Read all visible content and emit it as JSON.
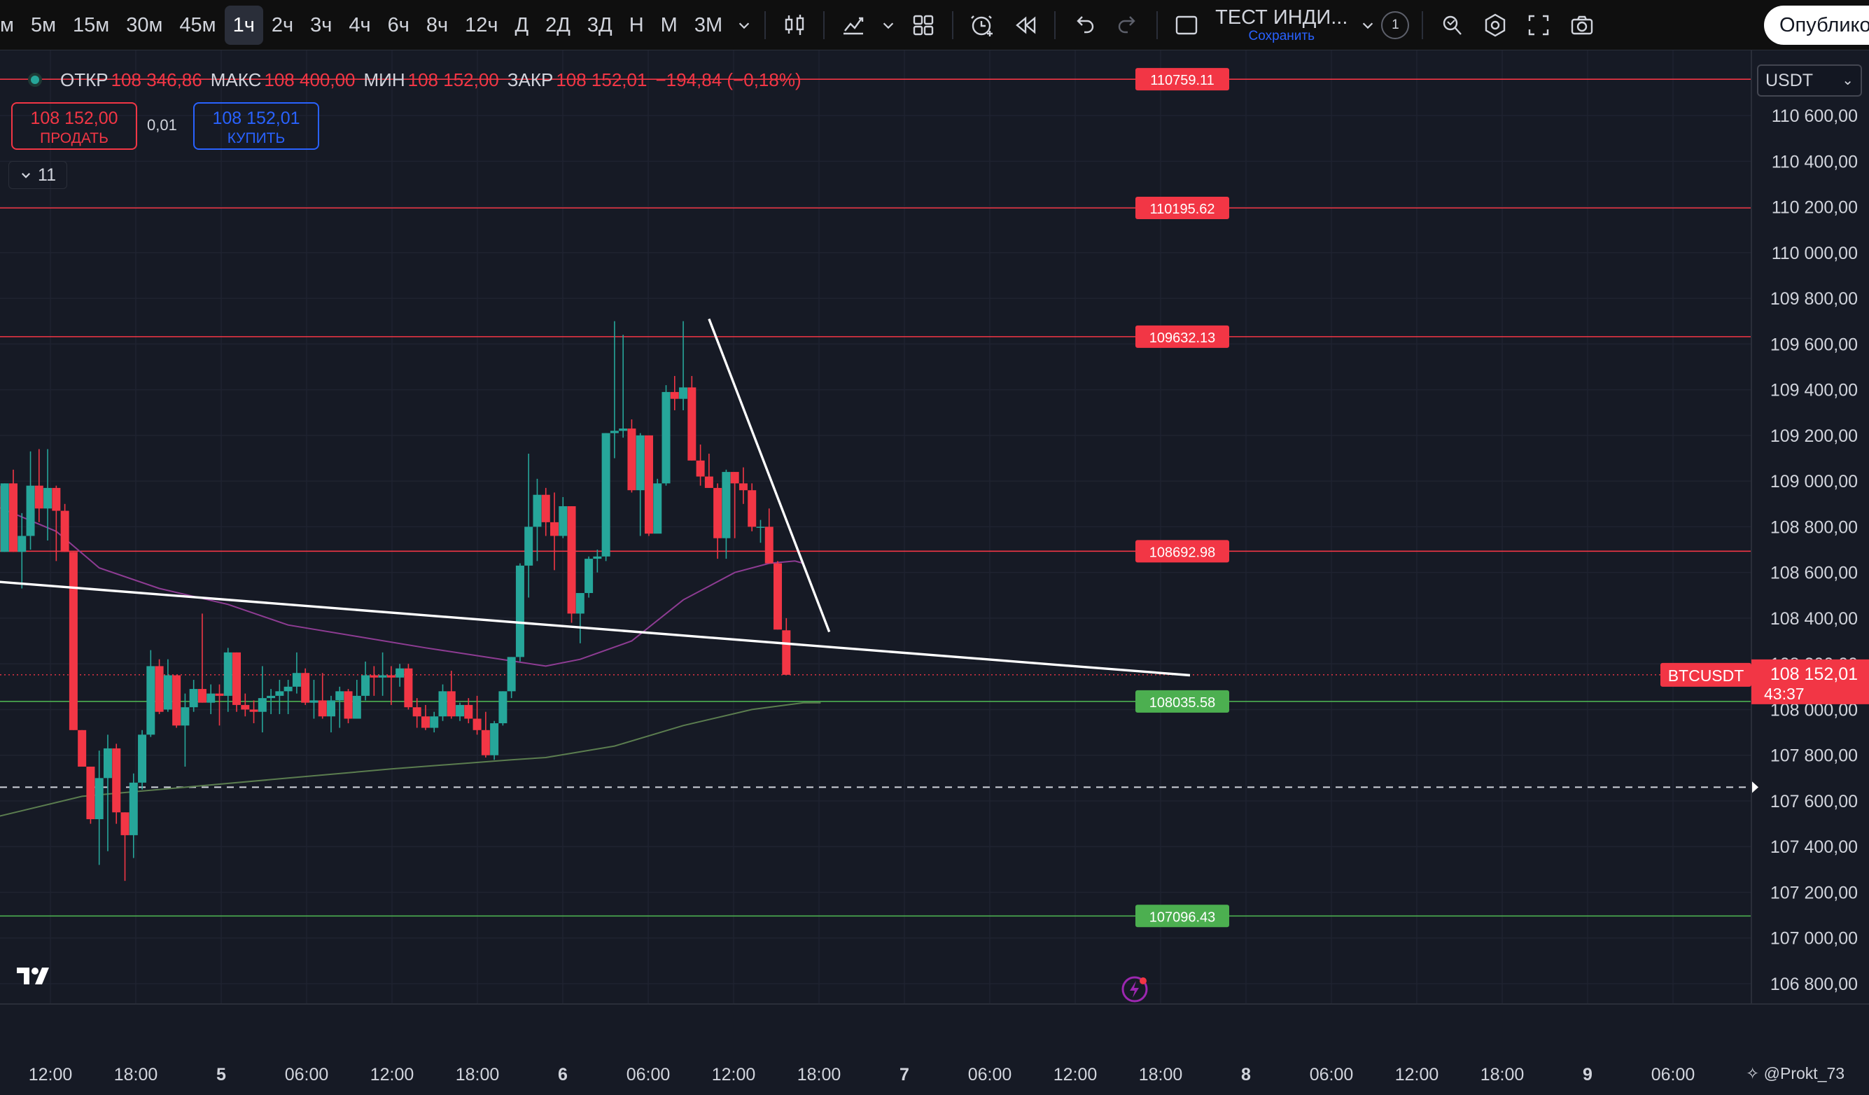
{
  "toolbar": {
    "timeframes": [
      "м",
      "5м",
      "15м",
      "30м",
      "45м",
      "1ч",
      "2ч",
      "3ч",
      "4ч",
      "6ч",
      "8ч",
      "12ч",
      "Д",
      "2Д",
      "3Д",
      "Н",
      "М",
      "3М"
    ],
    "active_timeframe": "1ч",
    "indicator_name": "ТЕСТ ИНДИ...",
    "indicator_save": "Сохранить",
    "counter": "1",
    "publish_label": "Опубликовать",
    "icons": [
      "chevron-down-icon",
      "candles-icon",
      "indicators-icon",
      "templates-icon",
      "alert-icon",
      "replay-icon",
      "undo-icon",
      "redo-icon",
      "layout-icon",
      "search-icon",
      "settings-icon",
      "fullscreen-icon",
      "camera-icon"
    ]
  },
  "legend": {
    "open_label": "ОТКР",
    "open": "108 346,86",
    "high_label": "МАКС",
    "high": "108 400,00",
    "low_label": "МИН",
    "low": "108 152,00",
    "close_label": "ЗАКР",
    "close": "108 152,01",
    "change": "−194,84 (−0,18%)"
  },
  "trading": {
    "sell_price": "108 152,00",
    "sell_label": "ПРОДАТЬ",
    "spread": "0,01",
    "buy_price": "108 152,01",
    "buy_label": "КУПИТЬ",
    "collapse_count": "11"
  },
  "currency": "USDT",
  "watermark": "@Prokt_73",
  "colors": {
    "up": "#26a69a",
    "down": "#f23645",
    "background": "#161a25",
    "ma_short": "#9c27b0",
    "ma_long": "#4caf50"
  },
  "chart_data": {
    "type": "candlestick",
    "symbol": "BTCUSDT",
    "last_price": "108 152,01",
    "countdown": "43:37",
    "y_axis_ticks": [
      "110 600,00",
      "110 400,00",
      "110 200,00",
      "110 000,00",
      "109 800,00",
      "109 600,00",
      "109 400,00",
      "109 200,00",
      "109 000,00",
      "108 800,00",
      "108 600,00",
      "108 400,00",
      "108 200,00",
      "108 000,00",
      "107 800,00",
      "107 600,00",
      "107 400,00",
      "107 200,00",
      "107 000,00",
      "106 800,00"
    ],
    "x_axis_ticks": [
      "12:00",
      "18:00",
      "5",
      "06:00",
      "12:00",
      "18:00",
      "6",
      "06:00",
      "12:00",
      "18:00",
      "7",
      "06:00",
      "12:00",
      "18:00",
      "8",
      "06:00",
      "12:00",
      "18:00",
      "9",
      "06:00"
    ],
    "ylim": [
      106700,
      110850
    ],
    "level_lines": [
      {
        "value": 110759.11,
        "label": "110759.11",
        "color": "red"
      },
      {
        "value": 110195.62,
        "label": "110195.62",
        "color": "red"
      },
      {
        "value": 109632.13,
        "label": "109632.13",
        "color": "red"
      },
      {
        "value": 108692.98,
        "label": "108692.98",
        "color": "red"
      },
      {
        "value": 108035.58,
        "label": "108035.58",
        "color": "green"
      },
      {
        "value": 107096.43,
        "label": "107096.43",
        "color": "green"
      }
    ],
    "dashed_level": 107660,
    "trendlines": [
      {
        "from": [
          -2,
          108560
        ],
        "to": [
          137,
          108150
        ]
      },
      {
        "from": [
          81,
          109710
        ],
        "to": [
          95,
          108340
        ]
      }
    ],
    "ma_short": [
      [
        -2,
        108890
      ],
      [
        5,
        108780
      ],
      [
        10,
        108620
      ],
      [
        17,
        108530
      ],
      [
        25,
        108460
      ],
      [
        32,
        108370
      ],
      [
        40,
        108320
      ],
      [
        48,
        108270
      ],
      [
        55,
        108230
      ],
      [
        62,
        108190
      ],
      [
        66,
        108220
      ],
      [
        72,
        108300
      ],
      [
        78,
        108480
      ],
      [
        84,
        108600
      ],
      [
        88,
        108640
      ],
      [
        91,
        108650
      ],
      [
        92,
        108640
      ]
    ],
    "ma_long": [
      [
        -2,
        107530
      ],
      [
        8,
        107620
      ],
      [
        20,
        107660
      ],
      [
        32,
        107700
      ],
      [
        44,
        107740
      ],
      [
        58,
        107780
      ],
      [
        62,
        107790
      ],
      [
        70,
        107840
      ],
      [
        78,
        107930
      ],
      [
        86,
        108000
      ],
      [
        92,
        108030
      ],
      [
        94,
        108030
      ]
    ],
    "candles": [
      [
        -2,
        108980,
        108980,
        108690,
        108690
      ],
      [
        -1,
        108690,
        108990,
        108690,
        108990
      ],
      [
        0,
        108990,
        109050,
        108690,
        108690
      ],
      [
        1,
        108690,
        108860,
        108530,
        108760
      ],
      [
        2,
        108760,
        109130,
        108700,
        108980
      ],
      [
        3,
        108980,
        109140,
        108820,
        108880
      ],
      [
        4,
        108880,
        109140,
        108740,
        108970
      ],
      [
        5,
        108970,
        108980,
        108650,
        108870
      ],
      [
        6,
        108870,
        108900,
        108690,
        108690
      ],
      [
        7,
        108690,
        108690,
        107910,
        107910
      ],
      [
        8,
        107910,
        107910,
        107750,
        107750
      ],
      [
        9,
        107750,
        107750,
        107500,
        107520
      ],
      [
        10,
        107520,
        107820,
        107320,
        107700
      ],
      [
        11,
        107700,
        107890,
        107380,
        107830
      ],
      [
        12,
        107830,
        107850,
        107500,
        107550
      ],
      [
        13,
        107550,
        107550,
        107250,
        107450
      ],
      [
        14,
        107450,
        107720,
        107350,
        107680
      ],
      [
        15,
        107680,
        107910,
        107650,
        107890
      ],
      [
        16,
        107890,
        108260,
        107880,
        108190
      ],
      [
        17,
        108190,
        108220,
        107980,
        107990
      ],
      [
        18,
        108000,
        108220,
        107990,
        108150
      ],
      [
        19,
        108150,
        108150,
        107920,
        107930
      ],
      [
        20,
        107930,
        108070,
        107750,
        108010
      ],
      [
        21,
        108010,
        108130,
        107990,
        108090
      ],
      [
        22,
        108090,
        108420,
        108030,
        108030
      ],
      [
        23,
        108030,
        108110,
        107980,
        108070
      ],
      [
        24,
        108070,
        108110,
        107930,
        108060
      ],
      [
        25,
        108060,
        108270,
        107990,
        108250
      ],
      [
        26,
        108250,
        108250,
        107990,
        108020
      ],
      [
        27,
        108020,
        108070,
        107970,
        108000
      ],
      [
        28,
        108000,
        108040,
        107940,
        107990
      ],
      [
        29,
        107990,
        108190,
        107900,
        108050
      ],
      [
        30,
        108050,
        108090,
        107980,
        108060
      ],
      [
        31,
        108060,
        108130,
        107980,
        108080
      ],
      [
        32,
        108080,
        108130,
        107980,
        108100
      ],
      [
        33,
        108100,
        108250,
        108070,
        108160
      ],
      [
        34,
        108160,
        108180,
        108020,
        108030
      ],
      [
        35,
        108030,
        108130,
        107960,
        108040
      ],
      [
        36,
        108040,
        108160,
        107960,
        107970
      ],
      [
        37,
        107970,
        108060,
        107900,
        108040
      ],
      [
        38,
        108040,
        108100,
        107920,
        108080
      ],
      [
        39,
        108080,
        108090,
        107940,
        107960
      ],
      [
        40,
        107960,
        108130,
        107960,
        108060
      ],
      [
        41,
        108060,
        108210,
        108040,
        108150
      ],
      [
        42,
        108150,
        108190,
        108060,
        108140
      ],
      [
        43,
        108140,
        108250,
        108060,
        108150
      ],
      [
        44,
        108150,
        108190,
        108020,
        108140
      ],
      [
        45,
        108140,
        108200,
        108100,
        108180
      ],
      [
        46,
        108180,
        108200,
        108000,
        108010
      ],
      [
        47,
        108010,
        108050,
        107920,
        107970
      ],
      [
        48,
        107970,
        108020,
        107910,
        107920
      ],
      [
        49,
        107920,
        107990,
        107900,
        107970
      ],
      [
        50,
        107970,
        108110,
        107950,
        108080
      ],
      [
        51,
        108080,
        108170,
        107960,
        107970
      ],
      [
        52,
        107970,
        108030,
        107950,
        108020
      ],
      [
        53,
        108020,
        108050,
        107940,
        107960
      ],
      [
        54,
        107960,
        108060,
        107890,
        107910
      ],
      [
        55,
        107910,
        107990,
        107790,
        107800
      ],
      [
        56,
        107800,
        107950,
        107780,
        107940
      ],
      [
        57,
        107940,
        108080,
        107930,
        108080
      ],
      [
        58,
        108080,
        108230,
        108050,
        108230
      ],
      [
        59,
        108230,
        108640,
        108210,
        108630
      ],
      [
        60,
        108630,
        109120,
        108490,
        108800
      ],
      [
        61,
        108800,
        109010,
        108650,
        108940
      ],
      [
        62,
        108940,
        108970,
        108760,
        108820
      ],
      [
        63,
        108820,
        108950,
        108610,
        108760
      ],
      [
        64,
        108760,
        108930,
        108750,
        108890
      ],
      [
        65,
        108890,
        108890,
        108380,
        108420
      ],
      [
        66,
        108420,
        108500,
        108290,
        108510
      ],
      [
        67,
        108510,
        108670,
        108490,
        108660
      ],
      [
        68,
        108660,
        108700,
        108600,
        108670
      ],
      [
        69,
        108670,
        109210,
        108650,
        109210
      ],
      [
        70,
        109210,
        109700,
        109100,
        109220
      ],
      [
        71,
        109220,
        109640,
        109190,
        109230
      ],
      [
        72,
        109230,
        109270,
        108950,
        108960
      ],
      [
        73,
        108960,
        109210,
        108760,
        109200
      ],
      [
        74,
        109200,
        109200,
        108760,
        108770
      ],
      [
        75,
        108770,
        109010,
        108780,
        108990
      ],
      [
        76,
        108990,
        109420,
        108980,
        109390
      ],
      [
        77,
        109390,
        109460,
        109310,
        109360
      ],
      [
        78,
        109360,
        109700,
        109310,
        109410
      ],
      [
        79,
        109410,
        109460,
        109090,
        109090
      ],
      [
        80,
        109090,
        109160,
        108980,
        109020
      ],
      [
        81,
        109020,
        109120,
        108970,
        108970
      ],
      [
        82,
        108970,
        108990,
        108660,
        108750
      ],
      [
        83,
        108750,
        109050,
        108660,
        109040
      ],
      [
        84,
        109040,
        109040,
        108750,
        108990
      ],
      [
        85,
        108990,
        109060,
        108900,
        108960
      ],
      [
        86,
        108960,
        108990,
        108780,
        108800
      ],
      [
        87,
        108800,
        108830,
        108730,
        108800
      ],
      [
        88,
        108800,
        108880,
        108640,
        108640
      ],
      [
        89,
        108640,
        108650,
        108350,
        108350
      ],
      [
        90,
        108346.86,
        108400,
        108152,
        108152.01
      ]
    ]
  }
}
